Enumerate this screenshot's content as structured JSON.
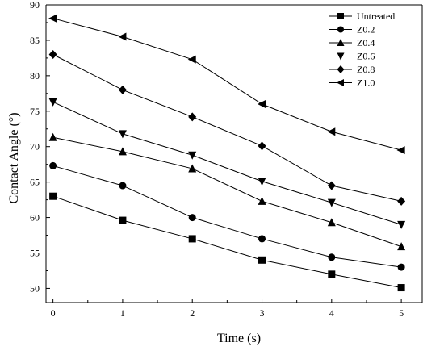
{
  "chart_data": {
    "type": "line",
    "title": "",
    "xlabel": "Time (s)",
    "ylabel": "Contact Angle (°)",
    "xlim": [
      -0.1,
      5.3
    ],
    "ylim": [
      48,
      90
    ],
    "xticks": [
      0,
      1,
      2,
      3,
      4,
      5
    ],
    "yticks": [
      50,
      55,
      60,
      65,
      70,
      75,
      80,
      85,
      90
    ],
    "grid": false,
    "legend_position": "top-right",
    "x": [
      0,
      1,
      2,
      3,
      4,
      5
    ],
    "series": [
      {
        "name": "Untreated",
        "marker": "square",
        "values": [
          63.0,
          59.6,
          57.0,
          54.0,
          52.0,
          50.1
        ]
      },
      {
        "name": "Z0.2",
        "marker": "circle",
        "values": [
          67.3,
          64.5,
          60.0,
          57.0,
          54.4,
          53.0
        ]
      },
      {
        "name": "Z0.4",
        "marker": "triangle-up",
        "values": [
          71.3,
          69.3,
          66.9,
          62.3,
          59.3,
          55.9
        ]
      },
      {
        "name": "Z0.6",
        "marker": "triangle-down",
        "values": [
          76.3,
          71.8,
          68.8,
          65.1,
          62.1,
          59.0
        ]
      },
      {
        "name": "Z0.8",
        "marker": "diamond",
        "values": [
          83.0,
          78.0,
          74.2,
          70.1,
          64.5,
          62.3
        ]
      },
      {
        "name": "Z1.0",
        "marker": "triangle-left",
        "values": [
          88.1,
          85.5,
          82.3,
          76.0,
          72.1,
          69.5
        ]
      }
    ],
    "colors": {
      "line": "#000000",
      "marker": "#000000",
      "axis": "#000000"
    }
  }
}
